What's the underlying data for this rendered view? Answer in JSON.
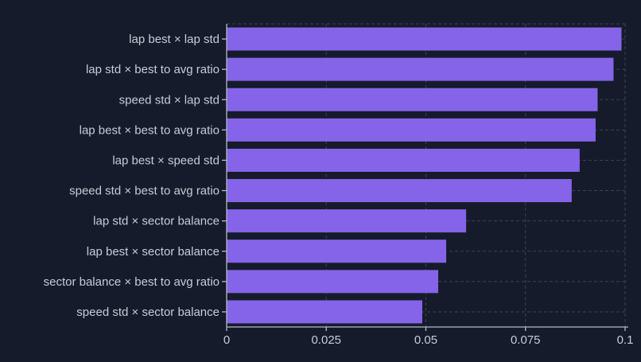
{
  "chart_data": {
    "type": "bar",
    "orientation": "horizontal",
    "title": "",
    "xlabel": "",
    "ylabel": "",
    "legend": "none",
    "grid": "dashed vertical lines at each x tick and dashed horizontal lines at each category center; dashed top and right plot borders",
    "categories": [
      "lap best × lap std",
      "lap std × best to avg ratio",
      "speed std × lap std",
      "lap best × best to avg ratio",
      "lap best × speed std",
      "speed std × best to avg ratio",
      "lap std × sector balance",
      "lap best × sector balance",
      "sector balance × best to avg ratio",
      "speed std × sector balance"
    ],
    "values": [
      0.099,
      0.097,
      0.093,
      0.0925,
      0.0885,
      0.0865,
      0.06,
      0.055,
      0.053,
      0.049
    ],
    "xlim": [
      0,
      0.1
    ],
    "x_ticks": [
      0,
      0.025,
      0.05,
      0.075,
      0.1
    ],
    "x_tick_labels": [
      "0",
      "0.025",
      "0.05",
      "0.075",
      "0.1"
    ],
    "colors": {
      "background": "#151b2a",
      "bar": "#8564ea",
      "gridline": "#3c4357",
      "axis": "#b3bac6",
      "tick_label": "#c7ccd7"
    }
  }
}
